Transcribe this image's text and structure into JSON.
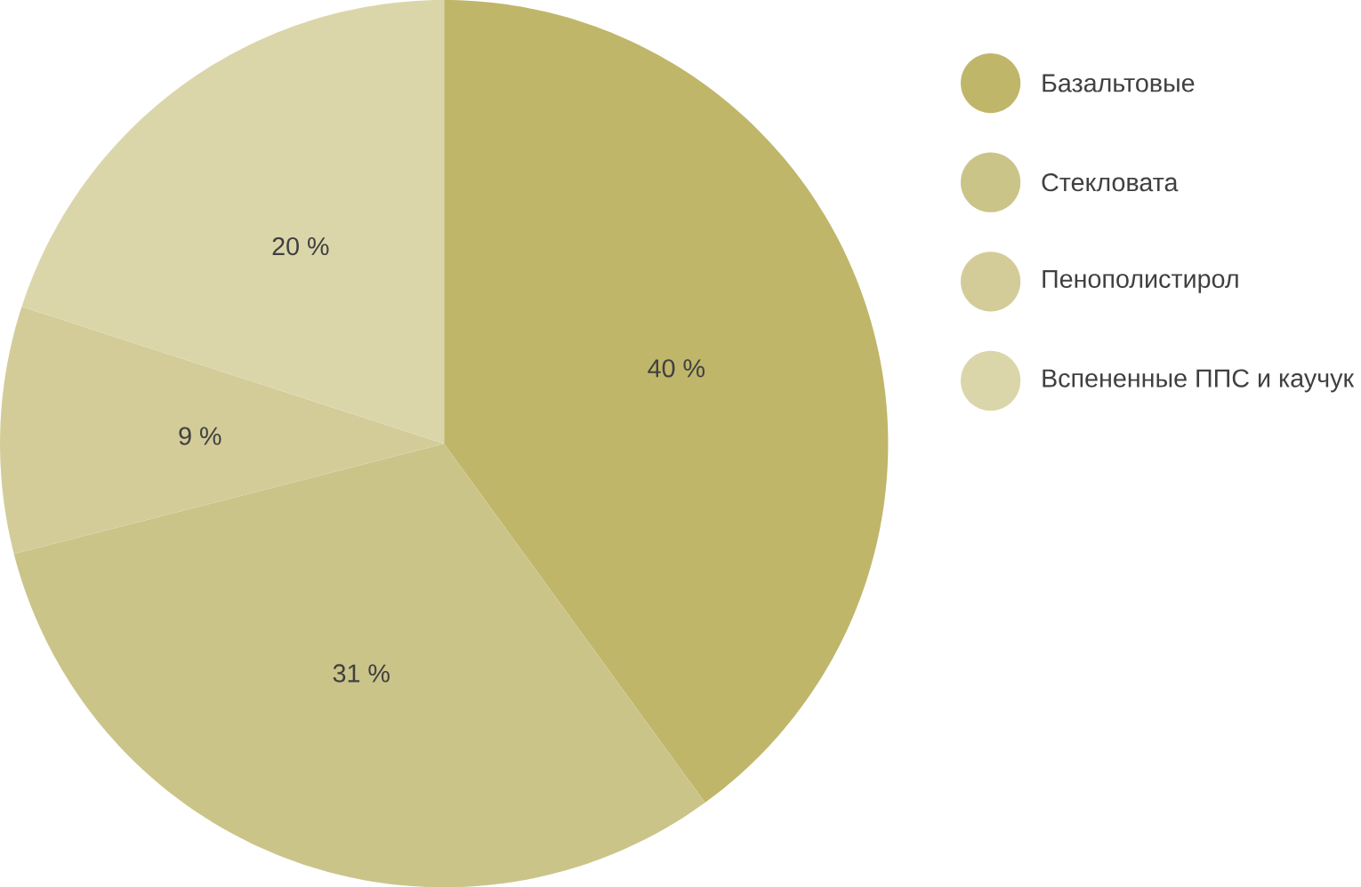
{
  "chart_data": {
    "type": "pie",
    "categories": [
      "Базальтовые",
      "Стекловата",
      "Пенополистирол",
      "Вспененные ППС и каучук"
    ],
    "values": [
      40,
      31,
      9,
      20
    ],
    "colors": [
      "#c0b66a",
      "#cbc489",
      "#d3cc99",
      "#dbd6aa"
    ],
    "value_labels": [
      "40 %",
      "31 %",
      "9 %",
      "20 %"
    ],
    "legend": "right"
  }
}
